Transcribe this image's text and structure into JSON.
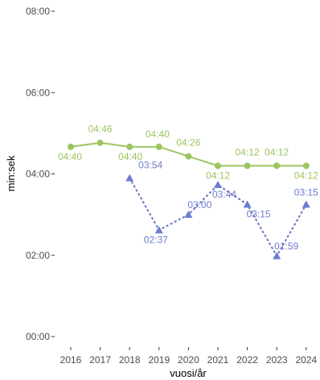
{
  "chart_data": {
    "type": "line",
    "xlabel": "vuosi/år",
    "ylabel": "min:sek",
    "x": [
      "2016",
      "2017",
      "2018",
      "2019",
      "2020",
      "2021",
      "2022",
      "2023",
      "2024"
    ],
    "y_ticks": [
      "00:00",
      "02:00",
      "04:00",
      "06:00",
      "08:00"
    ],
    "ylim": [
      0,
      480
    ],
    "grid": false,
    "series": [
      {
        "marker": "circle",
        "line": "solid",
        "color": "#9DC45F",
        "values": [
          280,
          286,
          280,
          280,
          266,
          252,
          252,
          252,
          252
        ],
        "labels": [
          "04:40",
          "04:46",
          "04:40",
          "04:40",
          "04:26",
          "04:12",
          "04:12",
          "04:12",
          "04:12"
        ]
      },
      {
        "marker": "triangle",
        "line": "dotted",
        "color": "#6E7CCB",
        "values": [
          null,
          null,
          234,
          157,
          180,
          224,
          195,
          119,
          195
        ],
        "labels": [
          "",
          "",
          "03:54",
          "02:37",
          "03:00",
          "03:44",
          "03:15",
          "01:59",
          "03:15"
        ]
      }
    ]
  }
}
